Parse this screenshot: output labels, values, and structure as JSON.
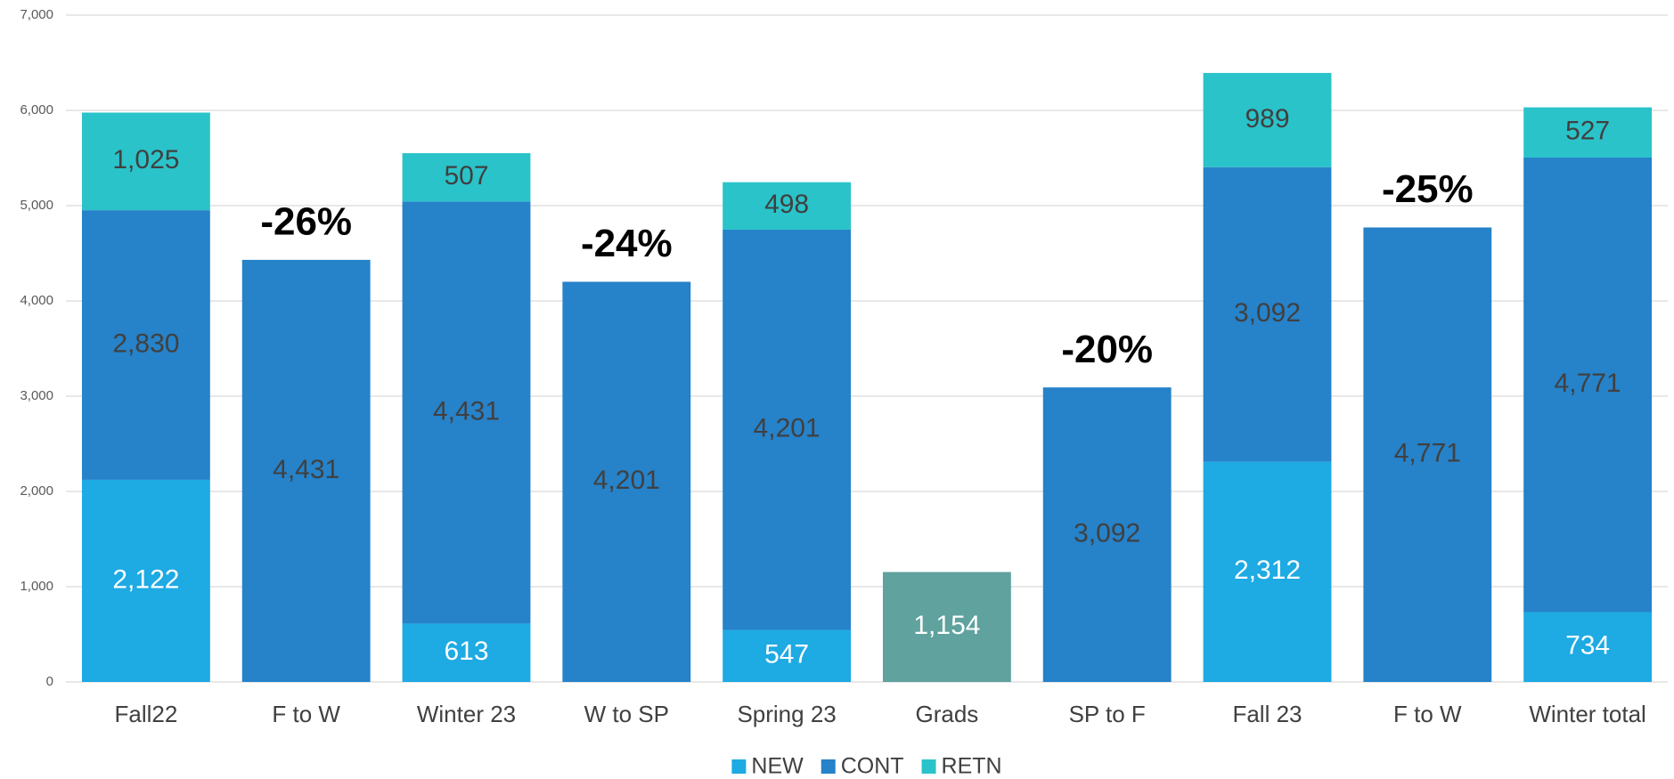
{
  "chart_data": {
    "type": "stacked_bar",
    "categories": [
      "Fall22",
      "F to W",
      "Winter 23",
      "W to SP",
      "Spring 23",
      "Grads",
      "SP to F",
      "Fall 23",
      "F to W",
      "Winter total"
    ],
    "series": [
      {
        "name": "NEW",
        "color": "#1eaae3",
        "label_color": "#ffffff",
        "values": [
          2122,
          null,
          613,
          null,
          547,
          null,
          null,
          2312,
          null,
          734
        ],
        "value_labels": [
          "2,122",
          null,
          "613",
          null,
          "547",
          null,
          null,
          "2,312",
          null,
          "734"
        ]
      },
      {
        "name": "CONT",
        "color": "#2682c9",
        "label_color": "#404040",
        "values": [
          2830,
          4431,
          4431,
          4201,
          4201,
          null,
          3092,
          3092,
          4771,
          4771
        ],
        "value_labels": [
          "2,830",
          "4,431",
          "4,431",
          "4,201",
          "4,201",
          null,
          "3,092",
          "3,092",
          "4,771",
          "4,771"
        ]
      },
      {
        "name": "RETN",
        "color": "#2ac3c9",
        "label_color": "#404040",
        "values": [
          1025,
          null,
          507,
          null,
          498,
          null,
          null,
          989,
          null,
          527
        ],
        "value_labels": [
          "1,025",
          null,
          "507",
          null,
          "498",
          null,
          null,
          "989",
          null,
          "527"
        ]
      },
      {
        "name": "Grads",
        "color": "#5fa29e",
        "label_color": "#ffffff",
        "legend": false,
        "values": [
          null,
          null,
          null,
          null,
          null,
          1154,
          null,
          null,
          null,
          null
        ],
        "value_labels": [
          null,
          null,
          null,
          null,
          null,
          "1,154",
          null,
          null,
          null,
          null
        ]
      }
    ],
    "annotations": [
      {
        "text": "-26%",
        "category": 1
      },
      {
        "text": "-24%",
        "category": 3
      },
      {
        "text": "-20%",
        "category": 6
      },
      {
        "text": "-25%",
        "category": 8
      }
    ],
    "ylim": [
      0,
      7000
    ],
    "yticks": [
      0,
      {
        "value": 1000,
        "label": "1,000"
      },
      {
        "value": 2000,
        "label": "2,000"
      },
      {
        "value": 3000,
        "label": "3,000"
      },
      {
        "value": 4000,
        "label": "4,000"
      },
      {
        "value": 5000,
        "label": "5,000"
      },
      {
        "value": 6000,
        "label": "6,000"
      },
      {
        "value": 7000,
        "label": "7,000"
      }
    ],
    "grid": true,
    "legend": "bottom"
  }
}
